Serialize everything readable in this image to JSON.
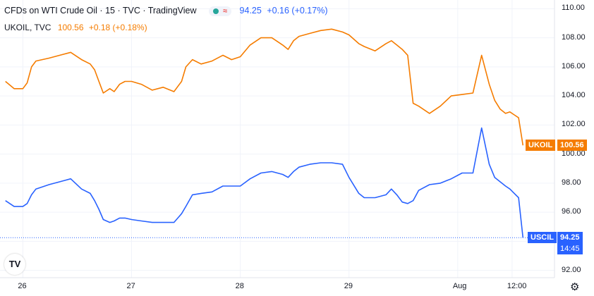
{
  "legend": {
    "title": "CFDs on WTI Crude Oil · 15 · TVC · TradingView",
    "main_value": "94.25",
    "main_change": "+0.16 (+0.17%)",
    "compare_symbol": "UKOIL, TVC",
    "compare_value": "100.56",
    "compare_change": "+0.18 (+0.18%)",
    "status_wave": "≈"
  },
  "colors": {
    "uscil": "#2962ff",
    "ukoil": "#f57c00",
    "status_dot": "#26a69a"
  },
  "tags": {
    "ukoil_symbol": "UKOIL",
    "ukoil_price": "100.56",
    "uscil_symbol": "USCIL",
    "uscil_price": "94.25",
    "uscil_countdown": "14:45"
  },
  "icons": {
    "logo": "TV",
    "settings": "gear-icon"
  },
  "chart_data": {
    "type": "line",
    "ylim": [
      91.5,
      110.6
    ],
    "yticks": [
      "110.00",
      "108.00",
      "106.00",
      "104.00",
      "102.00",
      "100.00",
      "98.00",
      "96.00",
      "94.00",
      "92.00"
    ],
    "ytick_values": [
      110,
      108,
      106,
      104,
      102,
      100,
      98,
      96,
      94,
      92
    ],
    "xlim": [
      -0.05,
      5.05
    ],
    "xticks": [
      "26",
      "27",
      "28",
      "29",
      "Aug",
      "12:00"
    ],
    "xtick_values": [
      0.16,
      1.16,
      2.16,
      3.16,
      4.16,
      4.66
    ],
    "last_price_line": 94.25,
    "series": [
      {
        "name": "UKOIL",
        "color": "#f57c00",
        "x": [
          0.0,
          0.08,
          0.16,
          0.2,
          0.24,
          0.28,
          0.4,
          0.5,
          0.6,
          0.7,
          0.78,
          0.82,
          0.86,
          0.9,
          0.96,
          1.0,
          1.05,
          1.1,
          1.16,
          1.25,
          1.35,
          1.45,
          1.55,
          1.62,
          1.66,
          1.72,
          1.8,
          1.9,
          2.0,
          2.08,
          2.16,
          2.25,
          2.35,
          2.45,
          2.55,
          2.6,
          2.65,
          2.7,
          2.8,
          2.9,
          3.0,
          3.1,
          3.16,
          3.25,
          3.3,
          3.4,
          3.5,
          3.55,
          3.6,
          3.65,
          3.7,
          3.75,
          3.8,
          3.9,
          4.0,
          4.1,
          4.2,
          4.3,
          4.38,
          4.45,
          4.5,
          4.55,
          4.6,
          4.64,
          4.68,
          4.72,
          4.76
        ],
        "values": [
          105,
          104.5,
          104.5,
          104.9,
          106,
          106.4,
          106.6,
          106.8,
          107,
          106.5,
          106.2,
          105.8,
          105,
          104.2,
          104.5,
          104.3,
          104.8,
          105,
          105,
          104.8,
          104.4,
          104.6,
          104.3,
          105,
          106,
          106.5,
          106.2,
          106.4,
          106.8,
          106.5,
          106.7,
          107.5,
          108,
          108,
          107.5,
          107.2,
          107.8,
          108.1,
          108.3,
          108.5,
          108.6,
          108.4,
          108.2,
          107.6,
          107.4,
          107.1,
          107.6,
          107.8,
          107.5,
          107.2,
          106.8,
          103.5,
          103.3,
          102.8,
          103.3,
          104,
          104.1,
          104.2,
          106.8,
          104.8,
          103.7,
          103.1,
          102.8,
          102.9,
          102.7,
          102.5,
          100.6
        ]
      },
      {
        "name": "USCIL",
        "color": "#2962ff",
        "x": [
          0.0,
          0.08,
          0.16,
          0.2,
          0.24,
          0.28,
          0.4,
          0.5,
          0.6,
          0.7,
          0.78,
          0.82,
          0.86,
          0.9,
          0.96,
          1.0,
          1.05,
          1.1,
          1.16,
          1.25,
          1.35,
          1.45,
          1.55,
          1.62,
          1.66,
          1.72,
          1.8,
          1.9,
          2.0,
          2.08,
          2.16,
          2.25,
          2.35,
          2.45,
          2.55,
          2.6,
          2.65,
          2.7,
          2.8,
          2.9,
          3.0,
          3.1,
          3.16,
          3.25,
          3.3,
          3.4,
          3.5,
          3.55,
          3.6,
          3.65,
          3.7,
          3.75,
          3.8,
          3.9,
          4.0,
          4.1,
          4.2,
          4.3,
          4.38,
          4.45,
          4.5,
          4.55,
          4.6,
          4.64,
          4.68,
          4.72,
          4.76
        ],
        "values": [
          96.8,
          96.4,
          96.4,
          96.6,
          97.2,
          97.6,
          97.9,
          98.1,
          98.3,
          97.6,
          97.3,
          96.8,
          96.2,
          95.5,
          95.3,
          95.4,
          95.6,
          95.6,
          95.5,
          95.4,
          95.3,
          95.3,
          95.3,
          95.9,
          96.4,
          97.2,
          97.3,
          97.4,
          97.8,
          97.8,
          97.8,
          98.3,
          98.7,
          98.8,
          98.6,
          98.4,
          98.8,
          99.1,
          99.3,
          99.4,
          99.4,
          99.3,
          98.4,
          97.3,
          97,
          97,
          97.2,
          97.6,
          97.2,
          96.7,
          96.6,
          96.8,
          97.5,
          97.9,
          98,
          98.3,
          98.7,
          98.7,
          101.8,
          99.3,
          98.4,
          98.1,
          97.8,
          97.6,
          97.3,
          97,
          94.25
        ]
      }
    ]
  }
}
